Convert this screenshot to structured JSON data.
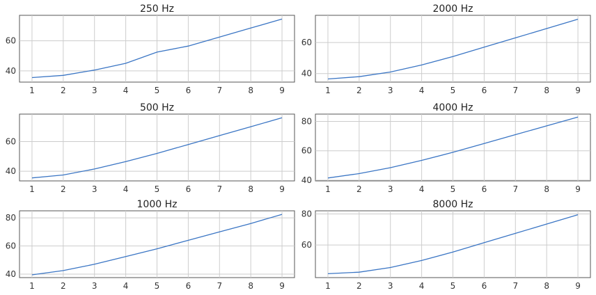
{
  "colors": {
    "line": "#3a75c4",
    "grid": "#cccccc",
    "frame": "#555555"
  },
  "chart_data": [
    {
      "type": "line",
      "title": "250 Hz",
      "x": [
        1,
        2,
        3,
        4,
        5,
        6,
        7,
        8,
        9
      ],
      "series": [
        {
          "values": [
            35.5,
            37,
            40.5,
            45,
            52.5,
            56.5,
            62.5,
            68.5,
            74.5
          ]
        }
      ],
      "xlim": [
        0.6,
        9.4
      ],
      "ylim": [
        32.5,
        77
      ],
      "xticks": [
        1,
        2,
        3,
        4,
        5,
        6,
        7,
        8,
        9
      ],
      "yticks": [
        40,
        60
      ],
      "grid": true
    },
    {
      "type": "line",
      "title": "2000 Hz",
      "x": [
        1,
        2,
        3,
        4,
        5,
        6,
        7,
        8,
        9
      ],
      "series": [
        {
          "values": [
            36.5,
            38,
            41,
            45.5,
            51,
            57,
            63,
            69,
            75
          ]
        }
      ],
      "xlim": [
        0.6,
        9.4
      ],
      "ylim": [
        34.5,
        77.5
      ],
      "xticks": [
        1,
        2,
        3,
        4,
        5,
        6,
        7,
        8,
        9
      ],
      "yticks": [
        40,
        60
      ],
      "grid": true
    },
    {
      "type": "line",
      "title": "500 Hz",
      "x": [
        1,
        2,
        3,
        4,
        5,
        6,
        7,
        8,
        9
      ],
      "series": [
        {
          "values": [
            35.5,
            37.5,
            41.5,
            46.5,
            52,
            58,
            64,
            70,
            76
          ]
        }
      ],
      "xlim": [
        0.6,
        9.4
      ],
      "ylim": [
        33.5,
        78.5
      ],
      "xticks": [
        1,
        2,
        3,
        4,
        5,
        6,
        7,
        8,
        9
      ],
      "yticks": [
        40,
        60
      ],
      "grid": true
    },
    {
      "type": "line",
      "title": "4000 Hz",
      "x": [
        1,
        2,
        3,
        4,
        5,
        6,
        7,
        8,
        9
      ],
      "series": [
        {
          "values": [
            41.5,
            44.5,
            48.5,
            53.5,
            59,
            65,
            71,
            77,
            83
          ]
        }
      ],
      "xlim": [
        0.6,
        9.4
      ],
      "ylim": [
        39.5,
        85
      ],
      "xticks": [
        1,
        2,
        3,
        4,
        5,
        6,
        7,
        8,
        9
      ],
      "yticks": [
        40,
        60,
        80
      ],
      "grid": true
    },
    {
      "type": "line",
      "title": "1000 Hz",
      "x": [
        1,
        2,
        3,
        4,
        5,
        6,
        7,
        8,
        9
      ],
      "series": [
        {
          "values": [
            39.5,
            42.5,
            47,
            52.5,
            58,
            64,
            70,
            76,
            82.5
          ]
        }
      ],
      "xlim": [
        0.6,
        9.4
      ],
      "ylim": [
        37.5,
        85
      ],
      "xticks": [
        1,
        2,
        3,
        4,
        5,
        6,
        7,
        8,
        9
      ],
      "yticks": [
        40,
        60,
        80
      ],
      "grid": true
    },
    {
      "type": "line",
      "title": "8000 Hz",
      "x": [
        1,
        2,
        3,
        4,
        5,
        6,
        7,
        8,
        9
      ],
      "series": [
        {
          "values": [
            41.5,
            42.5,
            45.5,
            50,
            55.5,
            61.5,
            67.5,
            73.5,
            79.5
          ]
        }
      ],
      "xlim": [
        0.6,
        9.4
      ],
      "ylim": [
        39,
        82
      ],
      "xticks": [
        1,
        2,
        3,
        4,
        5,
        6,
        7,
        8,
        9
      ],
      "yticks": [
        60,
        80
      ],
      "grid": true
    }
  ]
}
